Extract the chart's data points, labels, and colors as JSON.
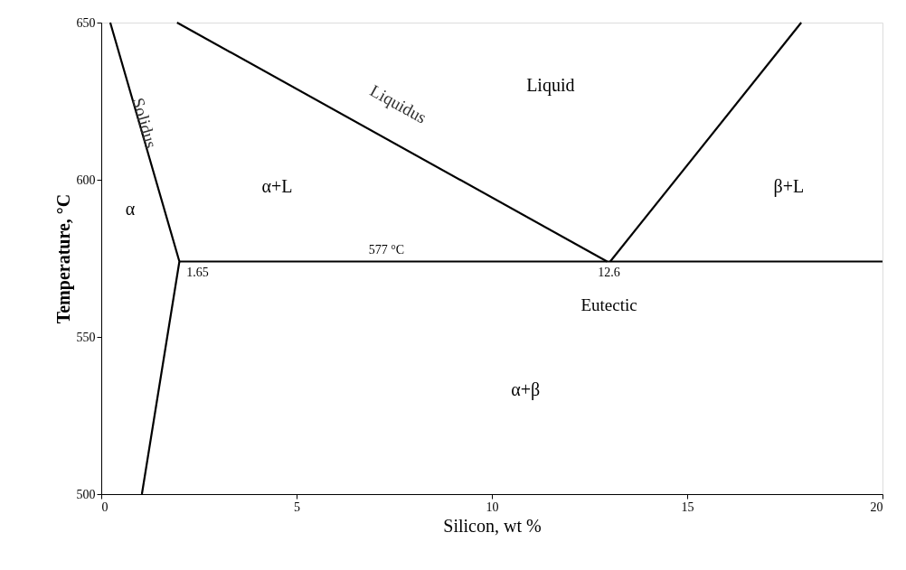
{
  "chart_data": {
    "type": "line",
    "xlabel": "Silicon, wt %",
    "ylabel": "Temperature, °C",
    "xlim": [
      0,
      20
    ],
    "ylim": [
      500,
      650
    ],
    "xticks": [
      0,
      5,
      10,
      15,
      20
    ],
    "yticks": [
      500,
      550,
      600,
      650
    ],
    "grid": false,
    "legend": false,
    "marker": "none",
    "line_style": "solid",
    "series": [
      {
        "color": "#000000",
        "x": [
          0.23,
          2.0,
          1.04
        ],
        "values": [
          650,
          574,
          500
        ]
      },
      {
        "color": "#000000",
        "x": [
          1.94,
          12.95
        ],
        "values": [
          650,
          574
        ]
      },
      {
        "color": "#000000",
        "x": [
          13.03,
          17.92
        ],
        "values": [
          574,
          650
        ]
      },
      {
        "color": "#000000",
        "x": [
          2.0,
          20
        ],
        "values": [
          574,
          574
        ]
      }
    ],
    "annotations": [
      "Solidus",
      "Liquidus",
      "Liquid",
      "α",
      "α+L",
      "β+L",
      {
        "text": "577 °C",
        "x": 7.3,
        "y": 574
      },
      {
        "text": "1.65",
        "x": 2.0,
        "y": 574
      },
      {
        "text": "12.6",
        "x": 13.0,
        "y": 574
      },
      {
        "text": "Eutectic",
        "x": 13.0,
        "y": 574
      },
      "α+β"
    ]
  }
}
